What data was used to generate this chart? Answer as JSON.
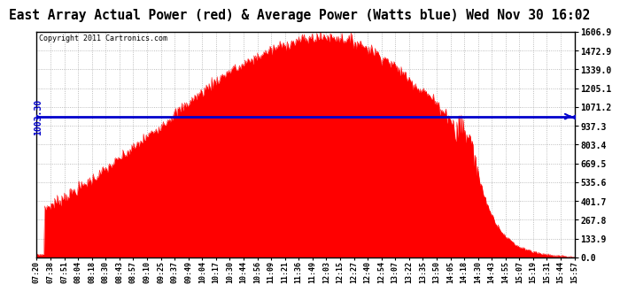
{
  "title": "East Array Actual Power (red) & Average Power (Watts blue) Wed Nov 30 16:02",
  "copyright": "Copyright 2011 Cartronics.com",
  "avg_power": 1003.3,
  "y_max": 1606.9,
  "y_min": 0.0,
  "y_ticks": [
    0.0,
    133.9,
    267.8,
    401.7,
    535.6,
    669.5,
    803.4,
    937.3,
    1071.2,
    1205.1,
    1339.0,
    1472.9,
    1606.9
  ],
  "fill_color": "#FF0000",
  "line_color": "#0000CC",
  "bg_color": "#FFFFFF",
  "plot_bg_color": "#FFFFFF",
  "grid_color": "#888888",
  "title_fontsize": 11,
  "x_labels": [
    "07:20",
    "07:38",
    "07:51",
    "08:04",
    "08:18",
    "08:30",
    "08:43",
    "08:57",
    "09:10",
    "09:25",
    "09:37",
    "09:49",
    "10:04",
    "10:17",
    "10:30",
    "10:44",
    "10:56",
    "11:09",
    "11:21",
    "11:36",
    "11:49",
    "12:03",
    "12:15",
    "12:27",
    "12:40",
    "12:54",
    "13:07",
    "13:22",
    "13:35",
    "13:50",
    "14:05",
    "14:18",
    "14:30",
    "14:43",
    "14:55",
    "15:07",
    "15:19",
    "15:31",
    "15:44",
    "15:57"
  ]
}
